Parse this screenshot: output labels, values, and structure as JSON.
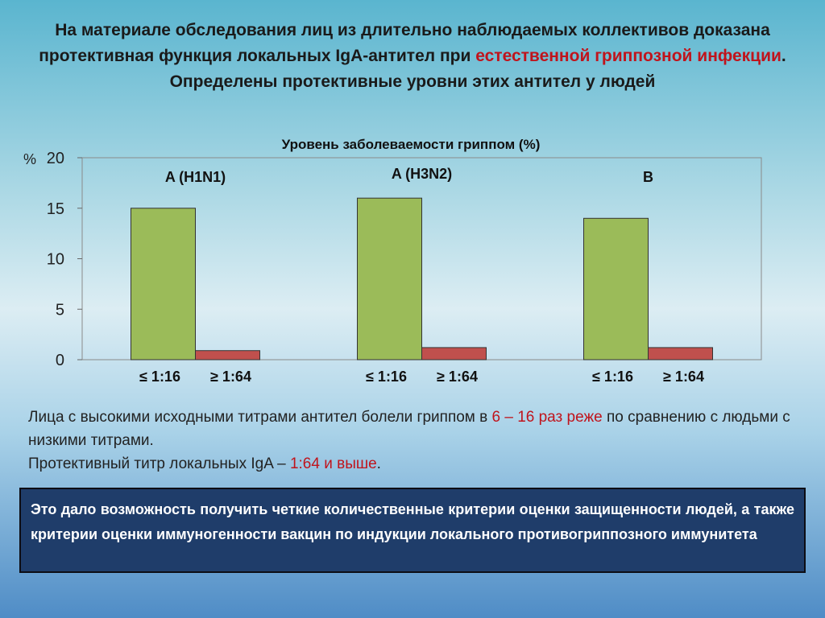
{
  "title": {
    "part1": "На материале обследования лиц из длительно наблюдаемых коллективов доказана протективная функция локальных IgA-антител при ",
    "highlight": "естественной гриппозной инфекции",
    "part2": ". Определены протективные уровни этих антител у людей"
  },
  "chart_data": {
    "type": "bar",
    "title": "Уровень заболеваемости гриппом (%)",
    "ylabel": "%",
    "ylim": [
      0,
      20
    ],
    "yticks": [
      "0",
      "5",
      "10",
      "15",
      "20"
    ],
    "grid": false,
    "groups": [
      "A (H1N1)",
      "A (H3N2)",
      "B"
    ],
    "categories": [
      "≤ 1:16",
      "≥ 1:64"
    ],
    "values": [
      [
        15,
        0.9
      ],
      [
        16,
        1.2
      ],
      [
        14,
        1.2
      ]
    ],
    "colors": [
      "#9bbb59",
      "#c0504d"
    ]
  },
  "paragraph": {
    "line1a": "Лица с высокими исходными титрами антител болели гриппом в ",
    "line1hl": "6 – 16 раз реже",
    "line1b": " по сравнению с людьми с низкими титрами.",
    "line2a": "Протективный титр локальных IgA – ",
    "line2hl": "1:64 и выше",
    "line2b": "."
  },
  "conclusion": "Это дало возможность получить четкие количественные критерии оценки защищенности людей, а также критерии  оценки иммуногенности вакцин по индукции локального противогриппозного иммунитета"
}
